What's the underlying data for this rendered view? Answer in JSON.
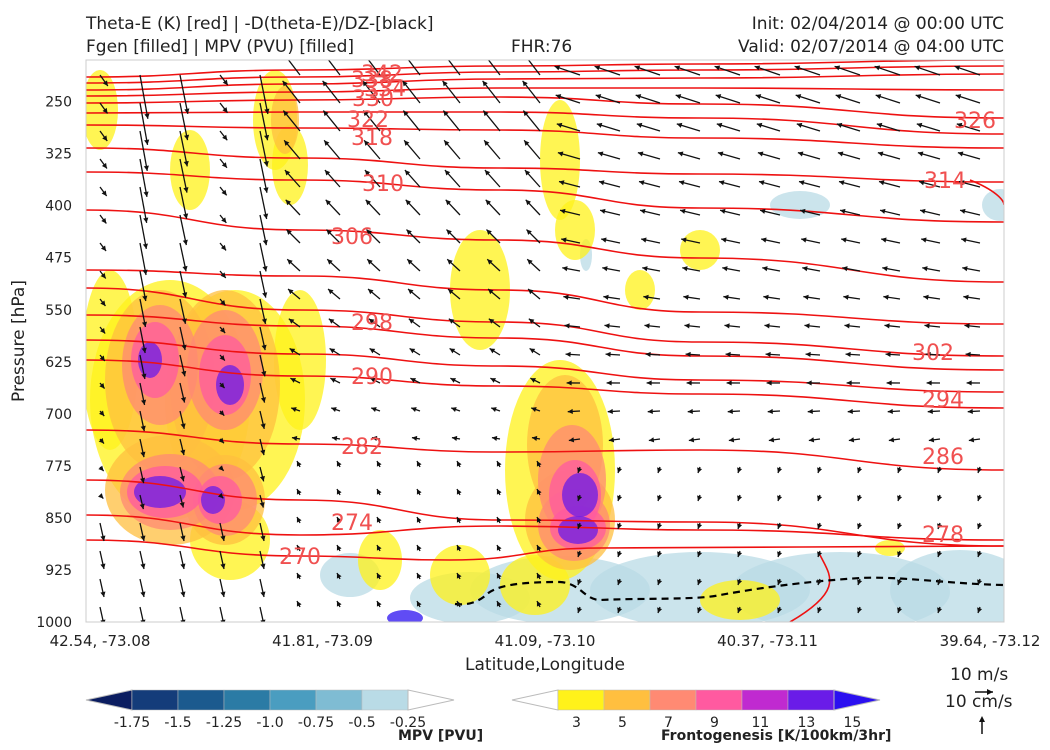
{
  "header": {
    "title_line1": "Theta-E (K) [red] | -D(theta-E)/DZ-[black]",
    "title_line2": "Fgen [filled] | MPV (PVU) [filled]",
    "fhr": "FHR:76",
    "init": "Init: 02/04/2014 @ 00:00 UTC",
    "valid": "Valid: 02/07/2014 @ 04:00 UTC"
  },
  "chart_data": {
    "type": "cross-section",
    "xlabel": "Latitude,Longitude",
    "ylabel": "Pressure [hPa]",
    "x_ticks": [
      "42.54, -73.08",
      "41.81, -73.09",
      "41.09, -73.10",
      "40.37, -73.11",
      "39.64, -73.12"
    ],
    "y_ticks": [
      250,
      325,
      400,
      475,
      550,
      625,
      700,
      775,
      850,
      925,
      1000
    ],
    "ylim": [
      1000,
      190
    ],
    "theta_e_color": "#ee1111",
    "theta_e_labels": [
      "342",
      "338",
      "334",
      "330",
      "326",
      "322",
      "318",
      "314",
      "310",
      "306",
      "302",
      "298",
      "294",
      "290",
      "286",
      "282",
      "278",
      "274",
      "270"
    ],
    "mpv_colorbar": {
      "title": "MPV [PVU]",
      "ticks": [
        "-1.75",
        "-1.5",
        "-1.25",
        "-1.0",
        "-0.75",
        "-0.5",
        "-0.25"
      ],
      "colors": [
        "#0b1d60",
        "#143c7a",
        "#1b5a8e",
        "#2b7ba5",
        "#4a9dc0",
        "#7fbcd3",
        "#b9dbe6",
        "#ffffff"
      ]
    },
    "fgen_colorbar": {
      "title": "Frontogenesis [K/100km/3hr]",
      "ticks": [
        "3",
        "5",
        "7",
        "9",
        "11",
        "13",
        "15"
      ],
      "colors": [
        "#ffffff",
        "#fff21a",
        "#ffbf3f",
        "#ff8a73",
        "#ff5aa0",
        "#c02ad0",
        "#6a1ce8",
        "#2b10f0"
      ]
    },
    "reference_vectors": [
      "10 m/s",
      "10 cm/s"
    ]
  }
}
